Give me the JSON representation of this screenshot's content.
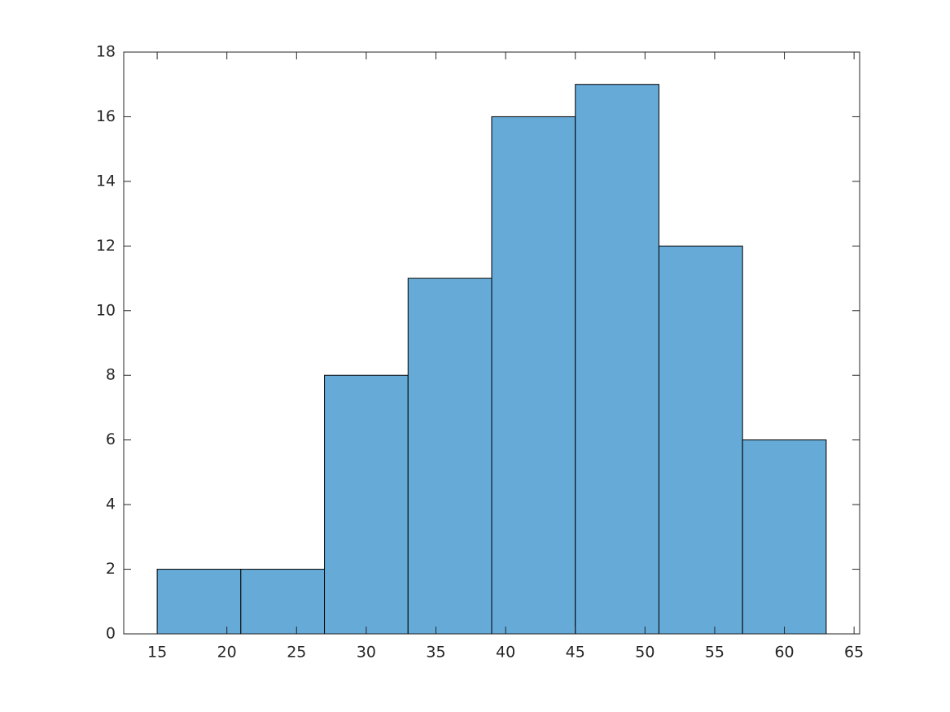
{
  "chart_data": {
    "type": "histogram",
    "bins": [
      15,
      21,
      27,
      33,
      39,
      45,
      51,
      57,
      63
    ],
    "values": [
      2,
      2,
      8,
      11,
      16,
      17,
      12,
      6
    ],
    "color": "#66aad7",
    "edgecolor": "#000000",
    "xlim": [
      12.6,
      65.4
    ],
    "xticks": [
      15,
      20,
      25,
      30,
      35,
      40,
      45,
      50,
      55,
      60,
      65
    ],
    "ylim": [
      0,
      18
    ],
    "yticks": [
      0,
      2,
      4,
      6,
      8,
      10,
      12,
      14,
      16,
      18
    ],
    "grid": false
  }
}
